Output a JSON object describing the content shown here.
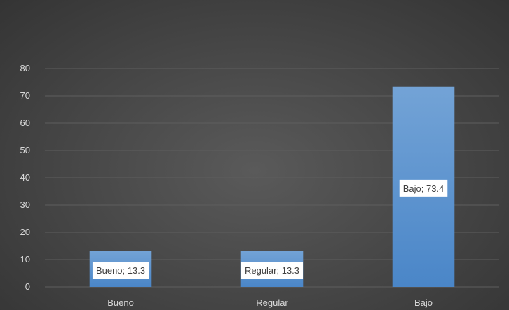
{
  "chart_data": {
    "type": "bar",
    "title": "",
    "xlabel": "",
    "ylabel": "",
    "categories": [
      "Bueno",
      "Regular",
      "Bajo"
    ],
    "values": [
      13.3,
      13.3,
      73.4
    ],
    "data_labels": [
      "Bueno; 13.3",
      "Regular; 13.3",
      "Bajo; 73.4"
    ],
    "ylim": [
      0,
      80
    ],
    "yticks": [
      "0",
      "10",
      "20",
      "30",
      "40",
      "50",
      "60",
      "70",
      "80"
    ],
    "grid": true,
    "legend": "none",
    "colors": {
      "bar_top": "#73a3d6",
      "bar_bottom": "#4a86c8",
      "grid": "#5e5e5e",
      "axis_text": "#d9d9d9",
      "label_bg": "#ffffff",
      "label_text": "#404040"
    }
  }
}
